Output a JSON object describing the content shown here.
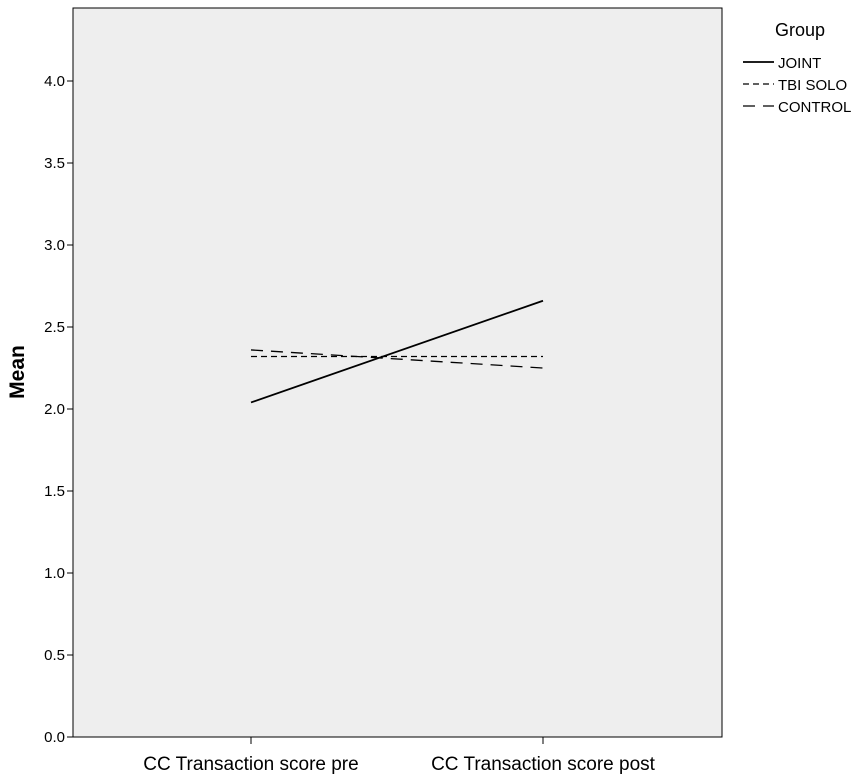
{
  "chart_data": {
    "type": "line",
    "title": "",
    "xlabel": "",
    "ylabel": "Mean",
    "categories": [
      "CC Transaction score pre",
      "CC Transaction score post"
    ],
    "ylim": [
      0,
      4.4
    ],
    "yticks": [
      "0.0",
      "0.5",
      "1.0",
      "1.5",
      "2.0",
      "2.5",
      "3.0",
      "3.5",
      "4.0"
    ],
    "grid": false,
    "plot_background": "#eeeeee",
    "legend": {
      "title": "Group",
      "placement": "right-top outside"
    },
    "series": [
      {
        "name": "JOINT",
        "values": [
          2.04,
          2.66
        ],
        "dash": "solid",
        "color": "#000000"
      },
      {
        "name": "TBI SOLO",
        "values": [
          2.32,
          2.32
        ],
        "dash": "short-dash",
        "color": "#000000"
      },
      {
        "name": "CONTROL",
        "values": [
          2.36,
          2.25
        ],
        "dash": "long-dash",
        "color": "#000000"
      }
    ]
  }
}
